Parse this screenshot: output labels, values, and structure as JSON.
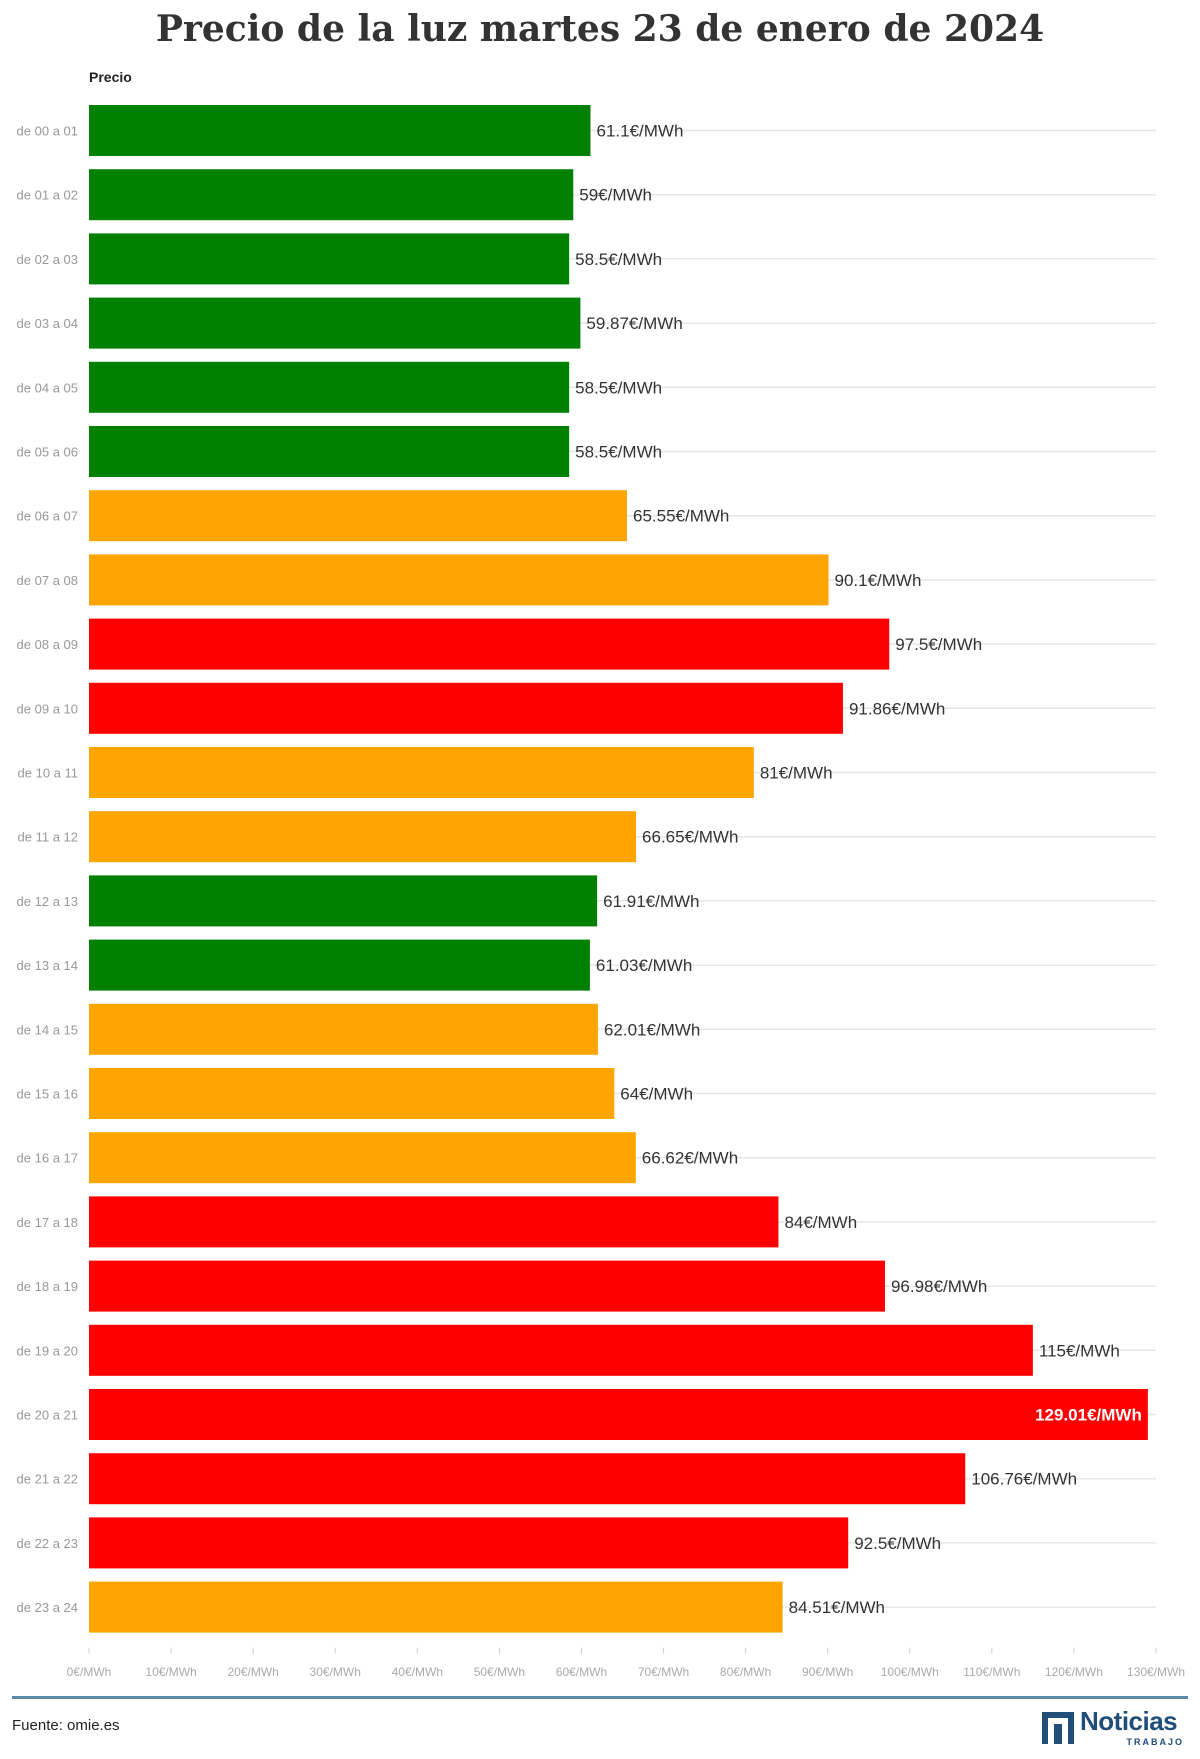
{
  "chart_data": {
    "type": "bar",
    "orientation": "horizontal",
    "title": "Precio de la luz martes 23 de enero de 2024",
    "series_name": "Precio",
    "categories": [
      "de 00 a 01",
      "de 01 a 02",
      "de 02 a 03",
      "de 03 a 04",
      "de 04 a 05",
      "de 05 a 06",
      "de 06 a 07",
      "de 07 a 08",
      "de 08 a 09",
      "de 09 a 10",
      "de 10 a 11",
      "de 11 a 12",
      "de 12 a 13",
      "de 13 a 14",
      "de 14 a 15",
      "de 15 a 16",
      "de 16 a 17",
      "de 17 a 18",
      "de 18 a 19",
      "de 19 a 20",
      "de 20 a 21",
      "de 21 a 22",
      "de 22 a 23",
      "de 23 a 24"
    ],
    "values": [
      61.1,
      59,
      58.5,
      59.87,
      58.5,
      58.5,
      65.55,
      90.1,
      97.5,
      91.86,
      81,
      66.65,
      61.91,
      61.03,
      62.01,
      64,
      66.62,
      84,
      96.98,
      115,
      129.01,
      106.76,
      92.5,
      84.51
    ],
    "value_labels": [
      "61.1€/MWh",
      "59€/MWh",
      "58.5€/MWh",
      "59.87€/MWh",
      "58.5€/MWh",
      "58.5€/MWh",
      "65.55€/MWh",
      "90.1€/MWh",
      "97.5€/MWh",
      "91.86€/MWh",
      "81€/MWh",
      "66.65€/MWh",
      "61.91€/MWh",
      "61.03€/MWh",
      "62.01€/MWh",
      "64€/MWh",
      "66.62€/MWh",
      "84€/MWh",
      "96.98€/MWh",
      "115€/MWh",
      "129.01€/MWh",
      "106.76€/MWh",
      "92.5€/MWh",
      "84.51€/MWh"
    ],
    "bar_colors": [
      "#008000",
      "#008000",
      "#008000",
      "#008000",
      "#008000",
      "#008000",
      "#FFA500",
      "#FFA500",
      "#FF0000",
      "#FF0000",
      "#FFA500",
      "#FFA500",
      "#008000",
      "#008000",
      "#FFA500",
      "#FFA500",
      "#FFA500",
      "#FF0000",
      "#FF0000",
      "#FF0000",
      "#FF0000",
      "#FF0000",
      "#FF0000",
      "#FFA500"
    ],
    "xlim": [
      0,
      130
    ],
    "x_ticks": [
      0,
      10,
      20,
      30,
      40,
      50,
      60,
      70,
      80,
      90,
      100,
      110,
      120,
      130
    ],
    "x_tick_labels": [
      "0€/MWh",
      "10€/MWh",
      "20€/MWh",
      "30€/MWh",
      "40€/MWh",
      "50€/MWh",
      "60€/MWh",
      "70€/MWh",
      "80€/MWh",
      "90€/MWh",
      "100€/MWh",
      "110€/MWh",
      "120€/MWh",
      "130€/MWh"
    ],
    "grid": true,
    "legend": "none"
  },
  "footer": {
    "source": "Fuente: omie.es",
    "logo_word": "Noticias",
    "logo_sub": "TRABAJO"
  },
  "colors": {
    "green": "#008000",
    "orange": "#FFA500",
    "red": "#FF0000",
    "accent_rule": "#5b8aa6",
    "logo": "#1f4e79"
  }
}
